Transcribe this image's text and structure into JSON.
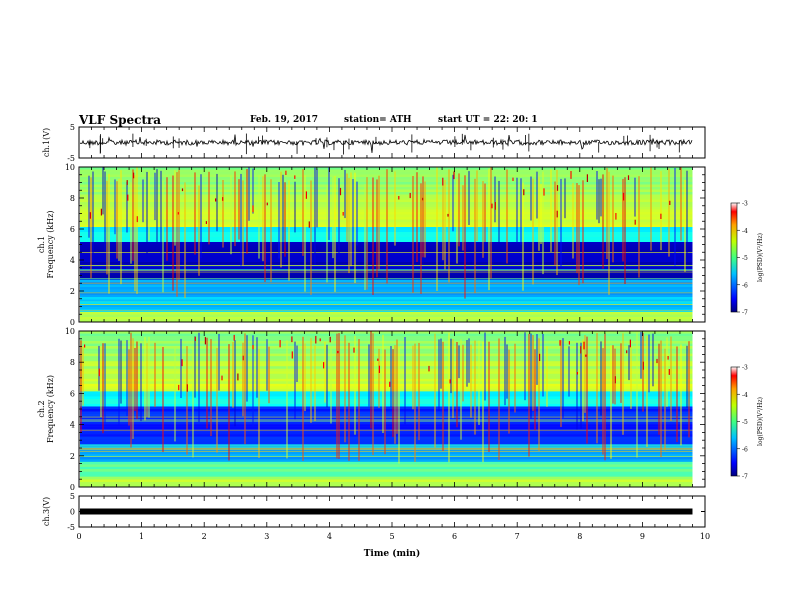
{
  "header": {
    "title": "VLF Spectra",
    "date": "Feb. 19, 2017",
    "station": "station= ATH",
    "start": "start  UT  =   22: 20: 1"
  },
  "chart_data": [
    {
      "type": "line",
      "name": "ch1-waveform",
      "ylabel": "ch.1(V)",
      "ylim": [
        -5,
        5
      ],
      "yticks": [
        "5",
        "-5"
      ],
      "xlim": [
        0,
        10
      ],
      "baseline_v": 0,
      "color": "#000000"
    },
    {
      "type": "heatmap",
      "name": "ch1-spectrogram",
      "ylabel": "ch.1\nFrequency (kHz)",
      "ylim": [
        0,
        10
      ],
      "yticks": [
        "0",
        "2",
        "4",
        "6",
        "8",
        "10"
      ],
      "xlim": [
        0,
        10
      ],
      "data_extent_min": 9.8,
      "colorbar": {
        "label": "log(PSD)(V²/Hz)",
        "ticks": [
          "-3",
          "-4",
          "-5",
          "-6",
          "-7"
        ],
        "range": [
          -7,
          -3
        ]
      }
    },
    {
      "type": "heatmap",
      "name": "ch2-spectrogram",
      "ylabel": "ch.2\nFrequency (kHz)",
      "ylim": [
        0,
        10
      ],
      "yticks": [
        "0",
        "2",
        "4",
        "6",
        "8",
        "10"
      ],
      "xlim": [
        0,
        10
      ],
      "data_extent_min": 9.8,
      "colorbar": {
        "label": "log(PSD)(V²/Hz)",
        "ticks": [
          "-3",
          "-4",
          "-5",
          "-6",
          "-7"
        ],
        "range": [
          -7,
          -3
        ]
      }
    },
    {
      "type": "line",
      "name": "ch3-waveform",
      "ylabel": "ch.3(V)",
      "ylim": [
        -5,
        5
      ],
      "yticks": [
        "5",
        "0",
        "-5"
      ],
      "xlim": [
        0,
        10
      ],
      "baseline_v": 0,
      "color": "#000000"
    }
  ],
  "xaxis": {
    "label": "Time  (min)",
    "ticks": [
      "0",
      "1",
      "2",
      "3",
      "4",
      "5",
      "6",
      "7",
      "8",
      "9",
      "10"
    ]
  }
}
